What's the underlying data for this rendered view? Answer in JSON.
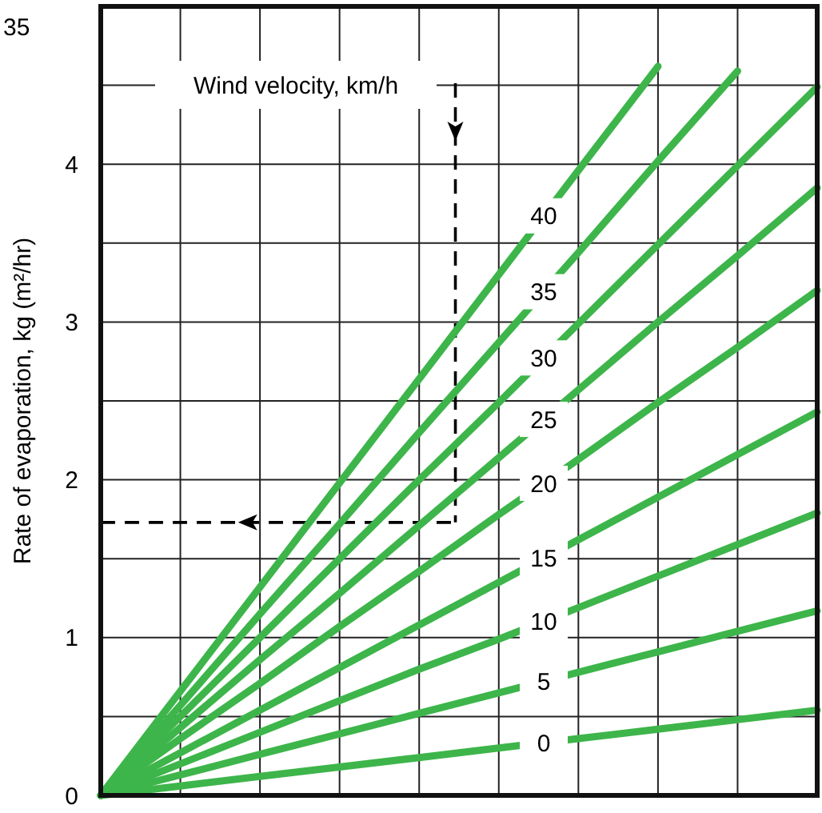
{
  "chart_data": {
    "type": "line",
    "ylabel": "Rate of evaporation, kg (m²/hr)",
    "legend_title": "Wind velocity, km/h",
    "annotations": [
      "35"
    ],
    "categories": [
      null,
      null,
      null,
      null,
      null,
      null,
      null,
      null,
      null,
      null
    ],
    "ylim": [
      0,
      5
    ],
    "yticks": [
      0,
      {
        "value": 0.5,
        "label": null
      },
      1,
      {
        "value": 1.5,
        "label": null
      },
      2,
      {
        "value": 2.5,
        "label": null
      },
      3,
      {
        "value": 3.5,
        "label": null
      },
      4,
      {
        "value": 4.5,
        "label": null
      },
      {
        "value": 5,
        "label": null
      }
    ],
    "ref_lines": [
      {
        "axis": "y",
        "value": 1.73,
        "color": "#000000",
        "line_style": "dashed"
      }
    ],
    "grid": true,
    "tick_labels": "y",
    "marker": "none",
    "line_style": "solid",
    "series": [
      {
        "name": "0",
        "color": "#3db54a",
        "values": [
          0,
          0.06,
          0.12,
          0.18,
          0.24,
          0.3,
          0.36,
          0.42,
          0.48,
          0.54
        ]
      },
      {
        "name": "5",
        "color": "#3db54a",
        "values": [
          0,
          0.13,
          0.26,
          0.39,
          0.52,
          0.65,
          0.78,
          0.91,
          1.04,
          1.17
        ]
      },
      {
        "name": "10",
        "color": "#3db54a",
        "values": [
          0,
          0.2,
          0.4,
          0.6,
          0.8,
          0.99,
          1.19,
          1.39,
          1.59,
          1.79
        ]
      },
      {
        "name": "15",
        "color": "#3db54a",
        "values": [
          0,
          0.27,
          0.54,
          0.81,
          1.08,
          1.35,
          1.62,
          1.89,
          2.16,
          2.43
        ]
      },
      {
        "name": "20",
        "color": "#3db54a",
        "values": [
          0,
          0.36,
          0.71,
          1.07,
          1.42,
          1.78,
          2.13,
          2.49,
          2.84,
          3.2
        ]
      },
      {
        "name": "25",
        "color": "#3db54a",
        "values": [
          0,
          0.43,
          0.86,
          1.28,
          1.71,
          2.14,
          2.57,
          3.0,
          3.42,
          3.85
        ]
      },
      {
        "name": "30",
        "color": "#3db54a",
        "values": [
          0,
          0.5,
          1.0,
          1.5,
          2.0,
          2.49,
          2.99,
          3.49,
          3.99,
          4.49
        ]
      },
      {
        "name": "35",
        "color": "#3db54a",
        "values": [
          0,
          0.57,
          1.15,
          1.72,
          2.3,
          2.87,
          3.44,
          4.02,
          4.59,
          null
        ]
      },
      {
        "name": "40",
        "color": "#3db54a",
        "values": [
          0,
          0.66,
          1.32,
          1.98,
          2.64,
          3.3,
          3.96,
          4.62,
          null,
          null
        ]
      }
    ]
  }
}
